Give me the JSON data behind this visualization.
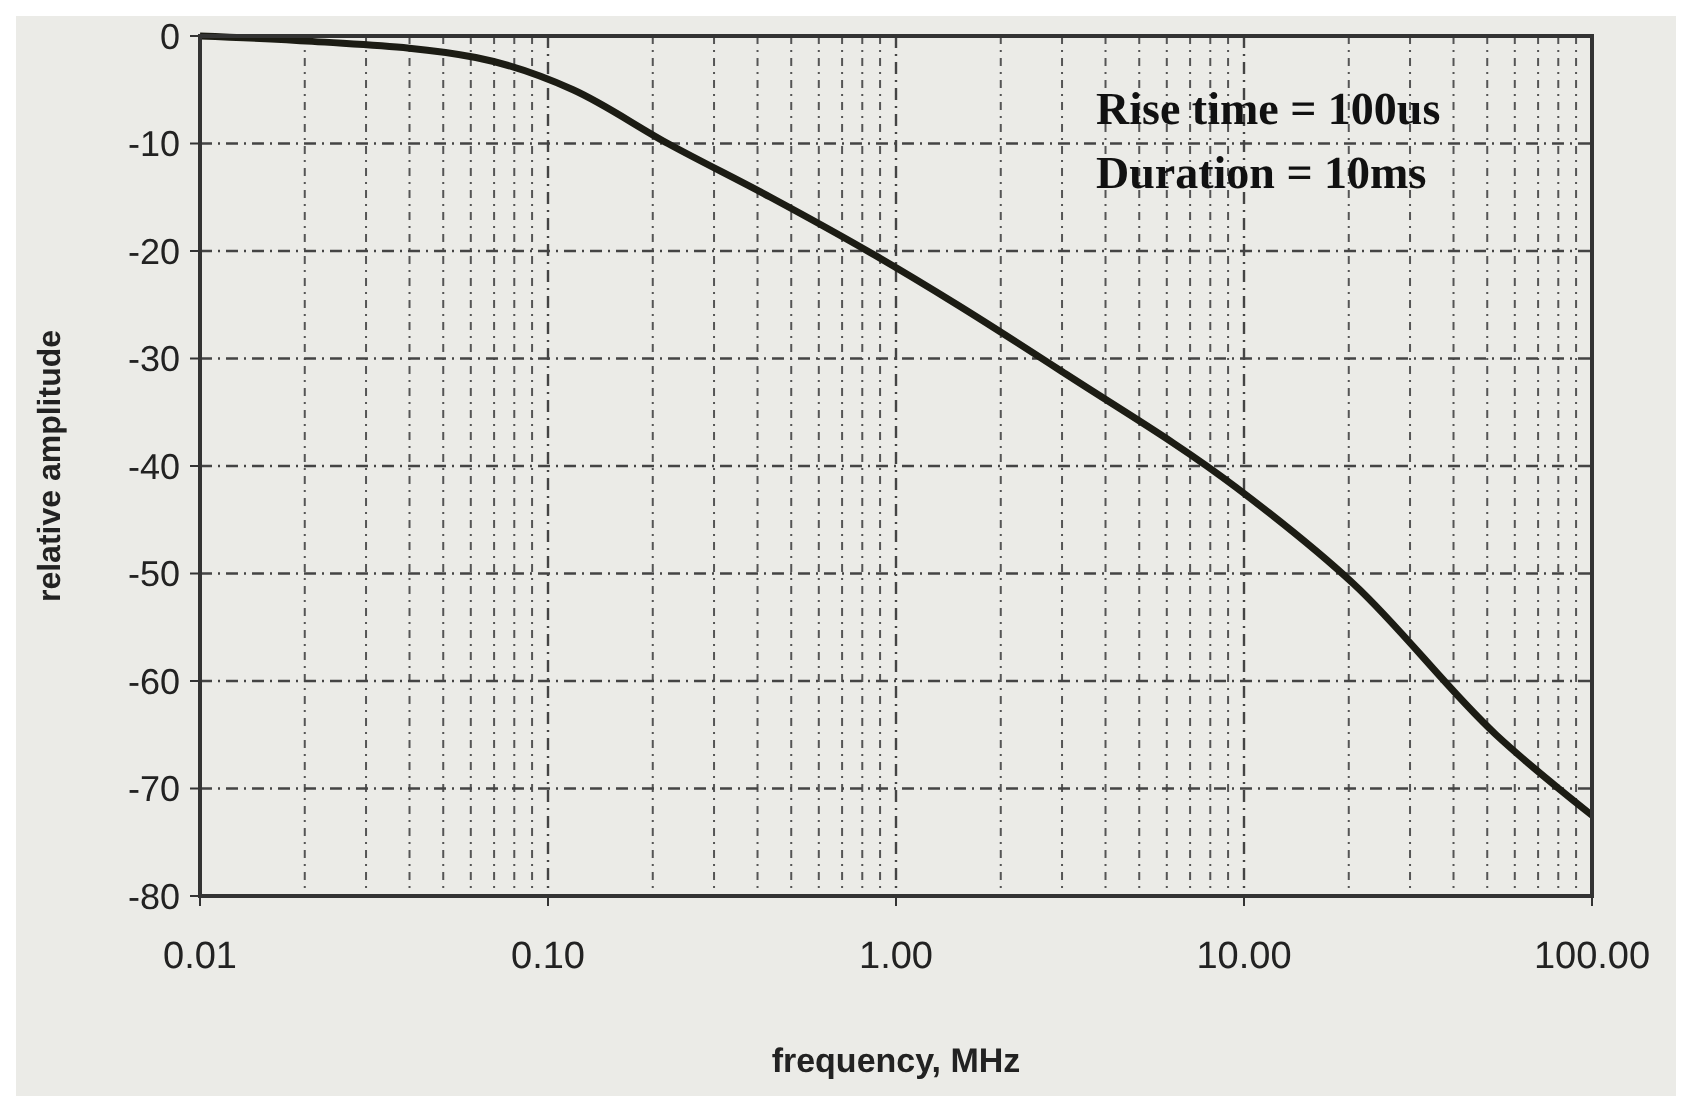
{
  "chart_data": {
    "type": "line",
    "xlabel": "frequency, MHz",
    "ylabel": "relative amplitude",
    "log": "x",
    "grid": true,
    "line_style": "solid",
    "marker": "none",
    "x": [
      0.01,
      0.021,
      0.062,
      0.118,
      0.221,
      0.436,
      0.87,
      1.5,
      3.06,
      9.5,
      20.7,
      53,
      100
    ],
    "series": [
      {
        "color": "#1c1c14",
        "values": [
          0,
          -0.5,
          -2,
          -5,
          -10,
          -15,
          -20.4,
          -25,
          -31.4,
          -42,
          -51,
          -65,
          -72.5
        ]
      }
    ],
    "xlim": [
      0.01,
      100
    ],
    "xticks": [
      {
        "value": 0.01,
        "label": "0.01"
      },
      {
        "value": 0.1,
        "label": "0.10"
      },
      {
        "value": 1,
        "label": "1.00"
      },
      {
        "value": 10,
        "label": "10.00"
      },
      {
        "value": 100,
        "label": "100.00"
      }
    ],
    "ylim": [
      -80,
      0
    ],
    "yticks": [
      -80,
      -70,
      -60,
      -50,
      -40,
      -30,
      -20,
      -10,
      0
    ],
    "annotations": [
      "Rise time = 100us",
      "Duration = 10ms"
    ]
  }
}
